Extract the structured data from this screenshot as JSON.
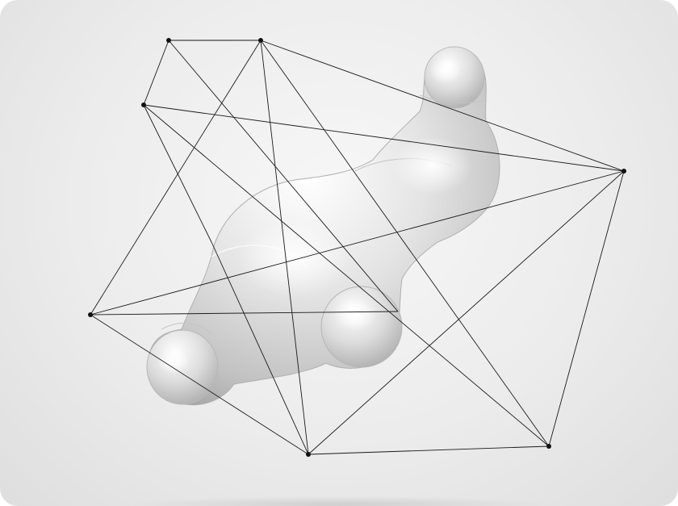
{
  "scene": {
    "subject": "abstract-molecule-illustration",
    "colors": {
      "background_center": "#f7f7f7",
      "background_edge": "#dedede",
      "blob_light": "#ffffff",
      "blob_mid": "#d4d4d4",
      "blob_dark": "#9c9c9c",
      "line": "#1a1a1a",
      "node": "#111111"
    }
  }
}
